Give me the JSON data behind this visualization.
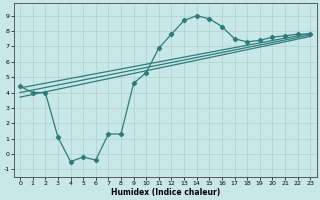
{
  "xlabel": "Humidex (Indice chaleur)",
  "xlim": [
    -0.5,
    23.5
  ],
  "ylim": [
    -1.5,
    9.8
  ],
  "xticks": [
    0,
    1,
    2,
    3,
    4,
    5,
    6,
    7,
    8,
    9,
    10,
    11,
    12,
    13,
    14,
    15,
    16,
    17,
    18,
    19,
    20,
    21,
    22,
    23
  ],
  "yticks": [
    -1,
    0,
    1,
    2,
    3,
    4,
    5,
    6,
    7,
    8,
    9
  ],
  "bg_color": "#c8e8e8",
  "line_color": "#2e7b7b",
  "curve_x": [
    0,
    1,
    2,
    3,
    4,
    5,
    6,
    7,
    8,
    9,
    10,
    11,
    12,
    13,
    14,
    15,
    16,
    17,
    18,
    19,
    20,
    21,
    22,
    23
  ],
  "curve_y": [
    4.4,
    4.0,
    4.0,
    1.1,
    -0.5,
    -0.2,
    -0.4,
    1.3,
    1.3,
    4.6,
    5.3,
    6.9,
    7.8,
    8.7,
    9.0,
    8.8,
    8.3,
    7.5,
    7.3,
    7.4,
    7.6,
    7.7,
    7.8,
    7.8
  ],
  "line1_x": [
    0,
    23
  ],
  "line1_y": [
    4.3,
    7.85
  ],
  "line2_x": [
    0,
    23
  ],
  "line2_y": [
    4.0,
    7.75
  ],
  "line3_x": [
    0,
    23
  ],
  "line3_y": [
    3.7,
    7.65
  ],
  "grid_color": "#b0d0d0",
  "figsize": [
    3.2,
    2.0
  ],
  "dpi": 100
}
